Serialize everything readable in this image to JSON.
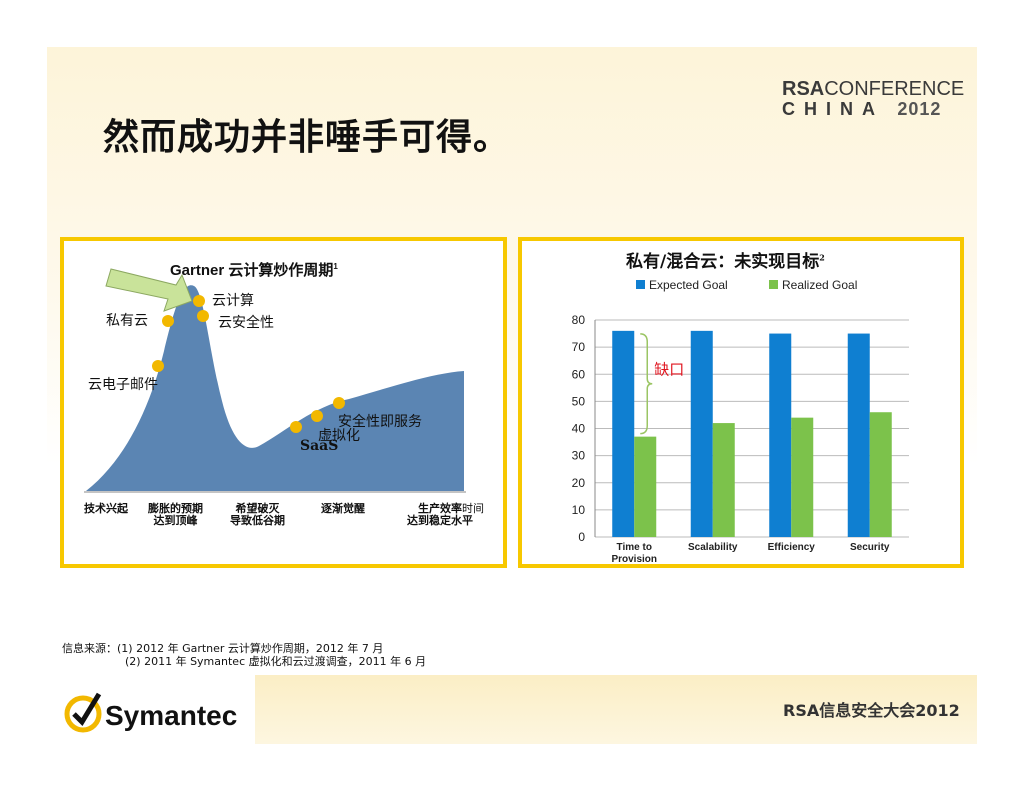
{
  "title": "然而成功并非唾手可得。",
  "logo": {
    "rsa": "RSA",
    "conference": "CONFERENCE",
    "china": "CHINA",
    "year": "2012"
  },
  "hype": {
    "title": "Gartner 云计算炒作周期",
    "title_sup": "1",
    "points": [
      "私有云",
      "云计算",
      "云安全性",
      "云电子邮件",
      "安全性即服务",
      "虚拟化",
      "SaaS"
    ],
    "stages": [
      "技术兴起",
      "膨胀的预期\n达到顶峰",
      "希望破灭\n导致低谷期",
      "逐渐觉醒",
      "生产效率\n达到稳定水平"
    ],
    "axis": "时间",
    "point_color": "#f2b800",
    "curve_color": "#5b85b3"
  },
  "chart_data": {
    "type": "bar",
    "title": "私有/混合云：未实现目标",
    "title_sup": "2",
    "categories": [
      "Time to Provision",
      "Scalability",
      "Efficiency",
      "Security"
    ],
    "category_lines": [
      [
        "Time to",
        "Provision"
      ],
      [
        "Scalability"
      ],
      [
        "Efficiency"
      ],
      [
        "Security"
      ]
    ],
    "series": [
      {
        "name": "Expected Goal",
        "values": [
          76,
          76,
          75,
          75
        ],
        "color": "#0f7fd1"
      },
      {
        "name": "Realized Goal",
        "values": [
          37,
          42,
          44,
          46
        ],
        "color": "#7cc24b"
      }
    ],
    "ylim": [
      0,
      80
    ],
    "yticks": [
      0,
      10,
      20,
      30,
      40,
      50,
      60,
      70,
      80
    ],
    "grid": true,
    "legend": "top",
    "annotation": "缺口",
    "annotation_color": "#e0141e"
  },
  "source": {
    "line1": "信息来源：(1) 2012 年 Gartner 云计算炒作周期，2012 年 7 月",
    "line2": "(2) 2011 年 Symantec 虚拟化和云过渡调查，2011 年 6 月"
  },
  "symantec": "Symantec",
  "footer": "RSA信息安全大会2012"
}
